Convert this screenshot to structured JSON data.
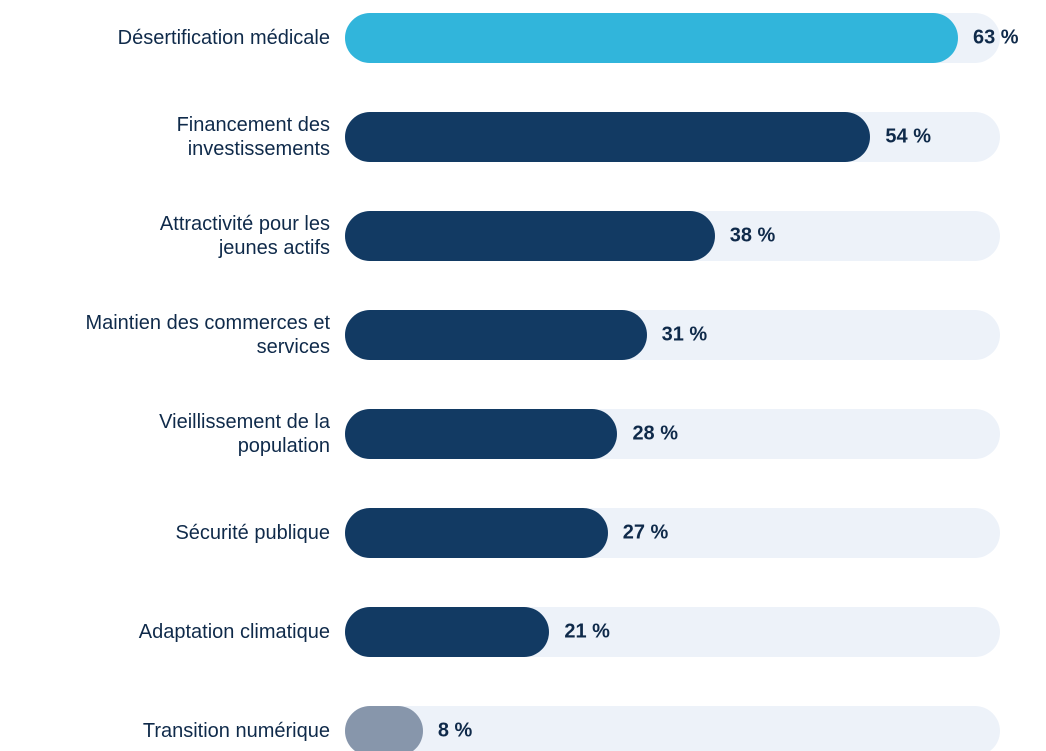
{
  "chart_data": {
    "type": "bar",
    "orientation": "horizontal",
    "categories": [
      "Désertification médicale",
      "Financement des\ninvestissements",
      "Attractivité pour les\njeunes actifs",
      "Maintien des commerces et\nservices",
      "Vieillissement de la\npopulation",
      "Sécurité publique",
      "Adaptation climatique",
      "Transition numérique"
    ],
    "values": [
      63,
      54,
      38,
      31,
      28,
      27,
      21,
      8
    ],
    "value_labels": [
      "63 %",
      "54 %",
      "38 %",
      "31 %",
      "28 %",
      "27 %",
      "21 %",
      "8 %"
    ],
    "colors": [
      "#31b5db",
      "#123a63",
      "#123a63",
      "#123a63",
      "#123a63",
      "#123a63",
      "#123a63",
      "#8796ab"
    ],
    "track_color": "#edf2f9"
  }
}
